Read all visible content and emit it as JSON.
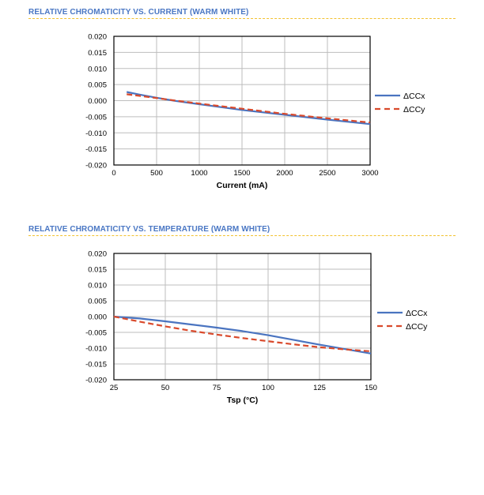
{
  "colors": {
    "title": "#4a77c4",
    "rule": "#f2c12e",
    "ccx": "#4a74c0",
    "ccy": "#d94a2c",
    "grid": "#bdbdbd"
  },
  "chart_data": [
    {
      "type": "line",
      "title": "RELATIVE CHROMATICITY VS. CURRENT (WARM WHITE)",
      "xlabel": "Current (mA)",
      "ylabel": "",
      "xlim": [
        0,
        3000
      ],
      "ylim": [
        -0.02,
        0.02
      ],
      "xticks": [
        "0",
        "500",
        "1000",
        "1500",
        "2000",
        "2500",
        "3000"
      ],
      "yticks": [
        "0.020",
        "0.015",
        "0.010",
        "0.005",
        "0.000",
        "-0.005",
        "-0.010",
        "-0.015",
        "-0.020"
      ],
      "grid": true,
      "legend": "right",
      "series": [
        {
          "name": "ΔCCx",
          "style": "solid",
          "x": [
            150,
            300,
            500,
            700,
            1000,
            1500,
            2000,
            2500,
            3000
          ],
          "y": [
            0.0027,
            0.0019,
            0.0009,
            0.0,
            -0.0011,
            -0.0029,
            -0.0044,
            -0.0059,
            -0.0073
          ]
        },
        {
          "name": "ΔCCy",
          "style": "dashed",
          "x": [
            150,
            300,
            500,
            700,
            1000,
            1500,
            2000,
            2500,
            3000
          ],
          "y": [
            0.002,
            0.0015,
            0.0008,
            0.0001,
            -0.0009,
            -0.0025,
            -0.0041,
            -0.0055,
            -0.0068
          ]
        }
      ]
    },
    {
      "type": "line",
      "title": "RELATIVE CHROMATICITY VS. TEMPERATURE (WARM WHITE)",
      "xlabel": "Tsp (°C)",
      "ylabel": "",
      "xlim": [
        25,
        150
      ],
      "ylim": [
        -0.02,
        0.02
      ],
      "xticks": [
        "25",
        "50",
        "75",
        "100",
        "125",
        "150"
      ],
      "yticks": [
        "0.020",
        "0.015",
        "0.010",
        "0.005",
        "0.000",
        "-0.005",
        "-0.010",
        "-0.015",
        "-0.020"
      ],
      "grid": true,
      "legend": "right",
      "series": [
        {
          "name": "ΔCCx",
          "style": "solid",
          "x": [
            25,
            37.5,
            50,
            62.5,
            75,
            87.5,
            100,
            112.5,
            125,
            137.5,
            150
          ],
          "y": [
            0.0,
            -0.0006,
            -0.0015,
            -0.0025,
            -0.0035,
            -0.0046,
            -0.0059,
            -0.0074,
            -0.0089,
            -0.0103,
            -0.0117
          ]
        },
        {
          "name": "ΔCCy",
          "style": "dashed",
          "x": [
            25,
            37.5,
            50,
            62.5,
            75,
            87.5,
            100,
            112.5,
            125,
            137.5,
            150
          ],
          "y": [
            0.0,
            -0.0016,
            -0.0031,
            -0.0045,
            -0.0057,
            -0.0068,
            -0.0078,
            -0.0088,
            -0.0097,
            -0.0104,
            -0.011
          ]
        }
      ]
    }
  ]
}
